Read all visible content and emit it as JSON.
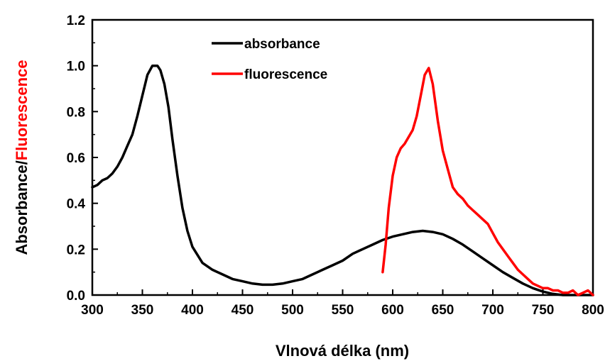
{
  "chart_data": {
    "type": "line",
    "xlabel": "Vlnová délka (nm)",
    "ylabel_parts": [
      {
        "text": "Absorbance/",
        "color": "#000000"
      },
      {
        "text": "Fluorescence",
        "color": "#ff0000"
      }
    ],
    "xlim": [
      300,
      800
    ],
    "ylim": [
      0,
      1.2
    ],
    "x_ticks": [
      "300",
      "350",
      "400",
      "450",
      "500",
      "550",
      "600",
      "650",
      "700",
      "750",
      "800"
    ],
    "y_ticks": [
      "0.0",
      "0.2",
      "0.4",
      "0.6",
      "0.8",
      "1.0",
      "1.2"
    ],
    "grid": false,
    "legend_placement": "top-center",
    "series": [
      {
        "name": "absorbance",
        "color": "#000000",
        "x": [
          300,
          305,
          310,
          315,
          320,
          325,
          330,
          335,
          340,
          345,
          350,
          355,
          360,
          365,
          368,
          372,
          376,
          380,
          385,
          390,
          395,
          400,
          410,
          420,
          430,
          440,
          450,
          460,
          470,
          480,
          490,
          500,
          510,
          520,
          530,
          540,
          550,
          560,
          570,
          580,
          590,
          600,
          610,
          620,
          630,
          640,
          650,
          660,
          670,
          680,
          690,
          700,
          710,
          720,
          730,
          740,
          750,
          760,
          770,
          780,
          790,
          800
        ],
        "y": [
          0.47,
          0.48,
          0.5,
          0.51,
          0.53,
          0.56,
          0.6,
          0.65,
          0.7,
          0.78,
          0.87,
          0.96,
          1.0,
          1.0,
          0.98,
          0.92,
          0.82,
          0.68,
          0.52,
          0.38,
          0.28,
          0.21,
          0.14,
          0.11,
          0.09,
          0.07,
          0.06,
          0.05,
          0.045,
          0.045,
          0.05,
          0.06,
          0.07,
          0.09,
          0.11,
          0.13,
          0.15,
          0.18,
          0.2,
          0.22,
          0.24,
          0.255,
          0.265,
          0.275,
          0.28,
          0.275,
          0.265,
          0.245,
          0.22,
          0.19,
          0.16,
          0.13,
          0.1,
          0.075,
          0.05,
          0.03,
          0.015,
          0.005,
          0.0,
          0.0,
          0.0,
          0.0
        ]
      },
      {
        "name": "fluorescence",
        "color": "#ff0000",
        "x": [
          590,
          593,
          596,
          600,
          604,
          608,
          612,
          616,
          620,
          624,
          628,
          632,
          636,
          640,
          645,
          650,
          655,
          660,
          665,
          670,
          675,
          680,
          685,
          690,
          695,
          700,
          705,
          710,
          715,
          720,
          725,
          730,
          735,
          740,
          745,
          750,
          755,
          760,
          765,
          770,
          775,
          780,
          785,
          790,
          795,
          800
        ],
        "y": [
          0.1,
          0.22,
          0.38,
          0.52,
          0.6,
          0.64,
          0.66,
          0.69,
          0.72,
          0.78,
          0.87,
          0.96,
          0.99,
          0.92,
          0.76,
          0.63,
          0.55,
          0.47,
          0.44,
          0.42,
          0.39,
          0.37,
          0.35,
          0.33,
          0.31,
          0.27,
          0.23,
          0.2,
          0.17,
          0.14,
          0.11,
          0.09,
          0.07,
          0.05,
          0.04,
          0.03,
          0.03,
          0.02,
          0.02,
          0.01,
          0.01,
          0.02,
          0.0,
          0.01,
          0.02,
          0.0
        ]
      }
    ]
  }
}
